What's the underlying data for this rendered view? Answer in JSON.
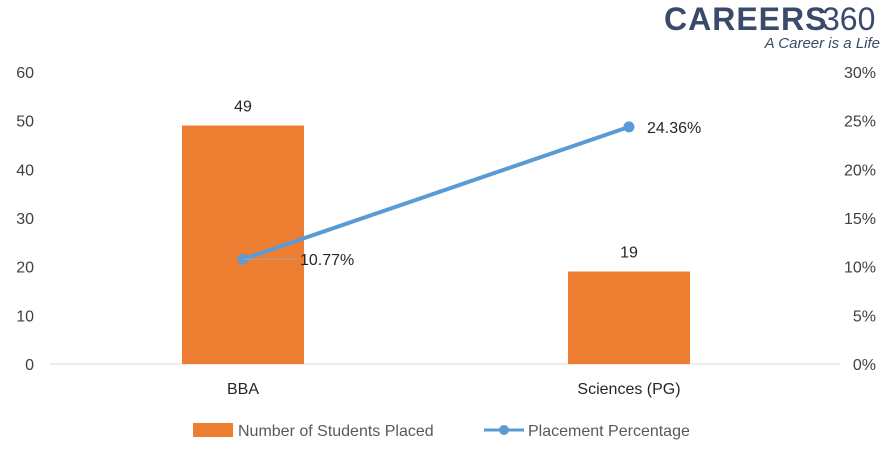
{
  "brand": {
    "name": "CAREERS",
    "number": "360",
    "tagline": "A Career is a Life",
    "color": "#3a4a6b"
  },
  "chart_data": {
    "type": "bar",
    "categories": [
      "BBA",
      "Sciences (PG)"
    ],
    "series": [
      {
        "name": "Number of Students Placed",
        "type": "bar",
        "axis": "left",
        "values": [
          49,
          19
        ],
        "labels": [
          "49",
          "19"
        ],
        "color": "#ed7d31"
      },
      {
        "name": "Placement Percentage",
        "type": "line",
        "axis": "right",
        "values": [
          10.77,
          24.36
        ],
        "labels": [
          "10.77%",
          "24.36%"
        ],
        "color": "#5b9bd5"
      }
    ],
    "y_left": {
      "min": 0,
      "max": 60,
      "ticks": [
        "0",
        "10",
        "20",
        "30",
        "40",
        "50",
        "60"
      ]
    },
    "y_right": {
      "min": 0,
      "max": 30,
      "ticks": [
        "0%",
        "5%",
        "10%",
        "15%",
        "20%",
        "25%",
        "30%"
      ]
    },
    "grid": false,
    "legend_position": "bottom"
  }
}
